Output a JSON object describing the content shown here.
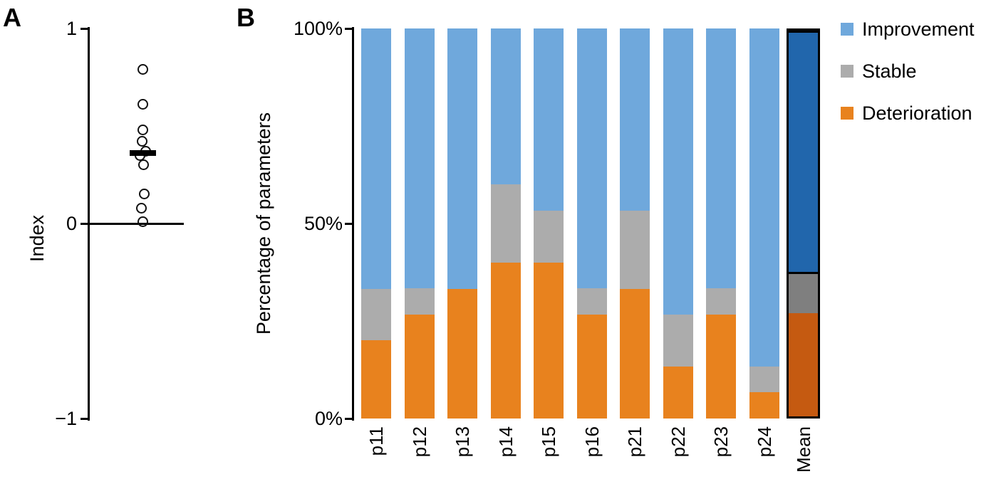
{
  "figure": {
    "panel_a": {
      "label": "A",
      "y_axis_title": "Index"
    },
    "panel_b": {
      "label": "B",
      "y_axis_title": "Percentage of parameters"
    }
  },
  "legend": {
    "items": [
      {
        "label": "Improvement",
        "color": "#6FA8DC"
      },
      {
        "label": "Stable",
        "color": "#ACACAC"
      },
      {
        "label": "Deterioration",
        "color": "#E8821E"
      }
    ]
  },
  "chart_data": [
    {
      "type": "scatter",
      "panel": "A",
      "title": "Index dot plot",
      "ylabel": "Index",
      "ylim": [
        -1,
        1
      ],
      "yticks": [
        1,
        0,
        -1
      ],
      "ytick_labels": [
        "1",
        "0",
        "−1"
      ],
      "marker": "open-circle",
      "points": [
        0.79,
        0.61,
        0.48,
        0.42,
        0.37,
        0.35,
        0.3,
        0.15,
        0.08,
        0.01
      ],
      "mean": 0.36,
      "zero_line_y": 0,
      "grid": false
    },
    {
      "type": "bar",
      "panel": "B",
      "stacked": true,
      "title": "Percentage of parameters per patient",
      "ylabel": "Percentage of parameters",
      "ylim": [
        0,
        100
      ],
      "yticks": [
        100,
        50,
        0
      ],
      "ytick_labels": [
        "100%",
        "50%",
        "0%"
      ],
      "categories": [
        "p11",
        "p12",
        "p13",
        "p14",
        "p15",
        "p16",
        "p21",
        "p22",
        "p23",
        "p24",
        "Mean"
      ],
      "series": [
        {
          "name": "Deterioration",
          "color": "#E8821E",
          "mean_color": "#C55A11",
          "values": [
            20,
            26.7,
            33.3,
            40,
            40,
            26.7,
            33.3,
            13.3,
            26.7,
            6.7,
            26.7
          ]
        },
        {
          "name": "Stable",
          "color": "#ACACAC",
          "mean_color": "#7F7F7F",
          "values": [
            13.3,
            6.7,
            0,
            20,
            13.3,
            6.7,
            20,
            13.3,
            6.7,
            6.7,
            10.7
          ]
        },
        {
          "name": "Improvement",
          "color": "#6FA8DC",
          "mean_color": "#2166AC",
          "values": [
            66.7,
            66.6,
            66.7,
            40,
            46.7,
            66.6,
            46.7,
            73.4,
            66.6,
            86.6,
            62.6
          ]
        }
      ],
      "legend_position": "top-right",
      "grid": false
    }
  ]
}
